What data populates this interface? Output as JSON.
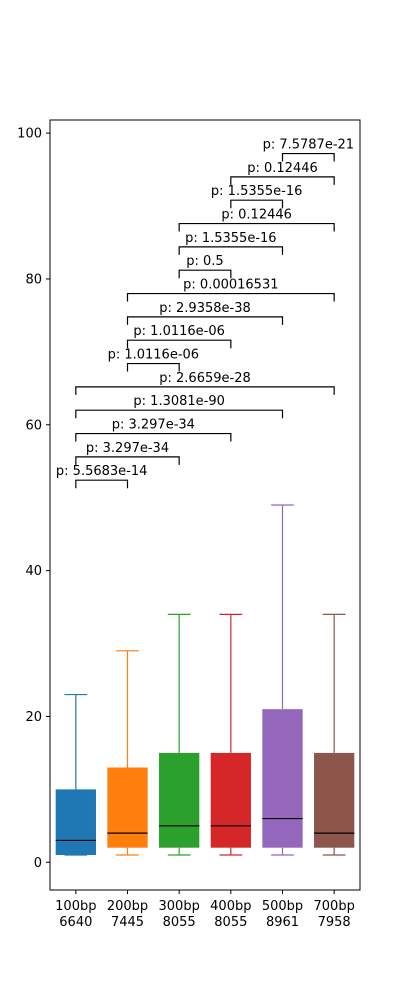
{
  "chart_data": {
    "type": "box",
    "title": "",
    "xlabel": "",
    "ylabel": "",
    "ylim": [
      -3.8,
      101.8
    ],
    "yticks": [
      0,
      20,
      40,
      60,
      80,
      100
    ],
    "grid": false,
    "categories": [
      {
        "label": "100bp",
        "count": "6640",
        "color": "#1f77b4",
        "min": 1,
        "q1": 1,
        "median": 3,
        "q3": 10,
        "max": 23
      },
      {
        "label": "200bp",
        "count": "7445",
        "color": "#ff7f0e",
        "min": 1,
        "q1": 2,
        "median": 4,
        "q3": 13,
        "max": 29
      },
      {
        "label": "300bp",
        "count": "8055",
        "color": "#2ca02c",
        "min": 1,
        "q1": 2,
        "median": 5,
        "q3": 15,
        "max": 34
      },
      {
        "label": "400bp",
        "count": "8055",
        "color": "#d62728",
        "min": 1,
        "q1": 2,
        "median": 5,
        "q3": 15,
        "max": 34
      },
      {
        "label": "500bp",
        "count": "8961",
        "color": "#9467bd",
        "min": 1,
        "q1": 2,
        "median": 6,
        "q3": 21,
        "max": 49
      },
      {
        "label": "700bp",
        "count": "7958",
        "color": "#8c564b",
        "min": 1,
        "q1": 2,
        "median": 4,
        "q3": 15,
        "max": 34
      }
    ],
    "comparisons": [
      {
        "a": 0,
        "b": 1,
        "y": 52.4,
        "text": "p: 5.5683e-14"
      },
      {
        "a": 0,
        "b": 2,
        "y": 55.6,
        "text": "p: 3.297e-34"
      },
      {
        "a": 0,
        "b": 3,
        "y": 58.8,
        "text": "p: 3.297e-34"
      },
      {
        "a": 0,
        "b": 4,
        "y": 62.0,
        "text": "p: 1.3081e-90"
      },
      {
        "a": 0,
        "b": 5,
        "y": 65.2,
        "text": "p: 2.6659e-28"
      },
      {
        "a": 1,
        "b": 2,
        "y": 68.4,
        "text": "p: 1.0116e-06"
      },
      {
        "a": 1,
        "b": 3,
        "y": 71.6,
        "text": "p: 1.0116e-06"
      },
      {
        "a": 1,
        "b": 4,
        "y": 74.8,
        "text": "p: 2.9358e-38"
      },
      {
        "a": 1,
        "b": 5,
        "y": 78.0,
        "text": "p: 0.00016531"
      },
      {
        "a": 2,
        "b": 3,
        "y": 81.2,
        "text": "p: 0.5"
      },
      {
        "a": 2,
        "b": 4,
        "y": 84.4,
        "text": "p: 1.5355e-16"
      },
      {
        "a": 2,
        "b": 5,
        "y": 87.6,
        "text": "p: 0.12446"
      },
      {
        "a": 3,
        "b": 4,
        "y": 90.8,
        "text": "p: 1.5355e-16"
      },
      {
        "a": 3,
        "b": 5,
        "y": 94.0,
        "text": "p: 0.12446"
      },
      {
        "a": 4,
        "b": 5,
        "y": 97.2,
        "text": "p: 7.5787e-21"
      }
    ]
  }
}
